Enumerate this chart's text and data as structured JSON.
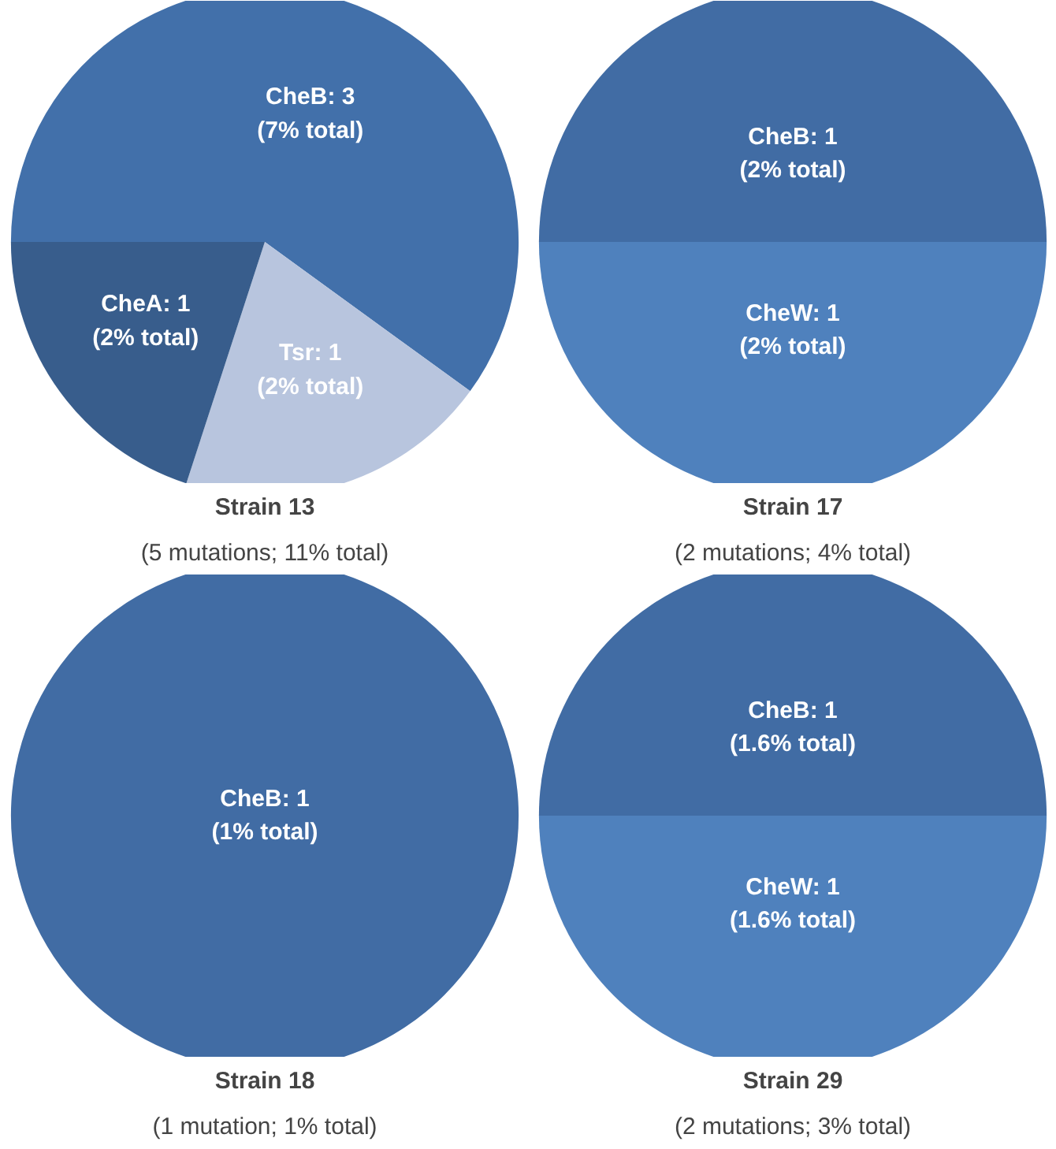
{
  "chart_data": [
    {
      "type": "pie",
      "title": "Strain 13",
      "subtitle": "(5 mutations; 11% total)",
      "categories": [
        "CheB: 3\n(7% total)",
        "Tsr: 1\n(2% total)",
        "CheA: 1\n(2% total)"
      ],
      "values": [
        3,
        1,
        1
      ],
      "colors": [
        "#4270aa",
        "#b8c5de",
        "#385d8c"
      ]
    },
    {
      "type": "pie",
      "title": "Strain 17",
      "subtitle": "(2 mutations; 4% total)",
      "categories": [
        "CheB: 1\n(2% total)",
        "CheW: 1\n(2% total)"
      ],
      "values": [
        1,
        1
      ],
      "colors": [
        "#416ca4",
        "#4f81bd"
      ]
    },
    {
      "type": "pie",
      "title": "Strain 18",
      "subtitle": "(1 mutation; 1% total)",
      "categories": [
        "CheB: 1\n(1% total)"
      ],
      "values": [
        1
      ],
      "colors": [
        "#416ca4"
      ]
    },
    {
      "type": "pie",
      "title": "Strain 29",
      "subtitle": "(2 mutations; 3% total)",
      "categories": [
        "CheB: 1\n(1.6% total)",
        "CheW: 1\n(1.6% total)"
      ],
      "values": [
        1,
        1
      ],
      "colors": [
        "#416ca4",
        "#4f81bd"
      ]
    }
  ]
}
